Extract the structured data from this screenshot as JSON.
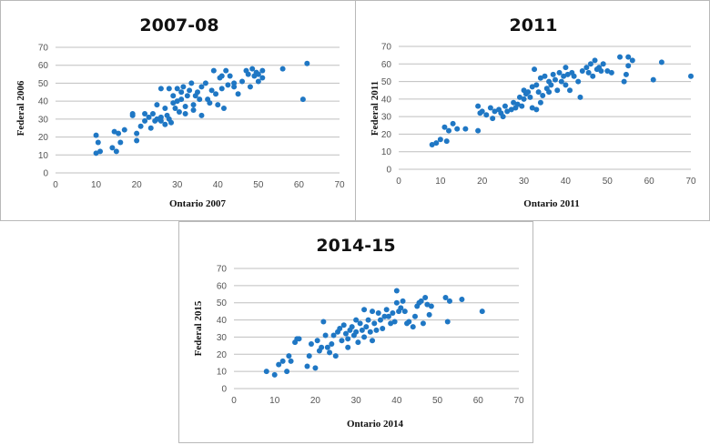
{
  "chart_data": [
    {
      "type": "scatter",
      "title": "2007-08",
      "xlabel": "Ontario 2007",
      "ylabel": "Federal 2006",
      "xlim": [
        0,
        70
      ],
      "ylim": [
        0,
        70
      ],
      "xticks": [
        0,
        10,
        20,
        30,
        40,
        50,
        60,
        70
      ],
      "yticks": [
        0,
        10,
        20,
        30,
        40,
        50,
        60,
        70
      ],
      "grid": "horizontal",
      "color": "#1f77c4",
      "points": [
        [
          10,
          11
        ],
        [
          10,
          21
        ],
        [
          10.5,
          17
        ],
        [
          11,
          12
        ],
        [
          14,
          14
        ],
        [
          14.5,
          23
        ],
        [
          15,
          12
        ],
        [
          15.5,
          22
        ],
        [
          16,
          17
        ],
        [
          17,
          24
        ],
        [
          19,
          33
        ],
        [
          19,
          32
        ],
        [
          20,
          18
        ],
        [
          20,
          22
        ],
        [
          21,
          26
        ],
        [
          22,
          29
        ],
        [
          22,
          33
        ],
        [
          23,
          31
        ],
        [
          23.5,
          25
        ],
        [
          24,
          33
        ],
        [
          24.5,
          29
        ],
        [
          25,
          38
        ],
        [
          25,
          30
        ],
        [
          26,
          31
        ],
        [
          26,
          29
        ],
        [
          26,
          47
        ],
        [
          27,
          36
        ],
        [
          27,
          27
        ],
        [
          27.5,
          32
        ],
        [
          28,
          30
        ],
        [
          28,
          47
        ],
        [
          28.5,
          28
        ],
        [
          29,
          39
        ],
        [
          29,
          43
        ],
        [
          29.5,
          36
        ],
        [
          30,
          47
        ],
        [
          30,
          40
        ],
        [
          30.5,
          34
        ],
        [
          31,
          45
        ],
        [
          31,
          41
        ],
        [
          31.5,
          48
        ],
        [
          32,
          37
        ],
        [
          32,
          33
        ],
        [
          32.5,
          43
        ],
        [
          33,
          46
        ],
        [
          33.5,
          50
        ],
        [
          34,
          38
        ],
        [
          34,
          35
        ],
        [
          34.5,
          43
        ],
        [
          35,
          45
        ],
        [
          35.5,
          41
        ],
        [
          36,
          48
        ],
        [
          36,
          32
        ],
        [
          37,
          50
        ],
        [
          37.5,
          41
        ],
        [
          38,
          39
        ],
        [
          38.5,
          46
        ],
        [
          39,
          57
        ],
        [
          39.5,
          44
        ],
        [
          40,
          38
        ],
        [
          40.5,
          53
        ],
        [
          41,
          54
        ],
        [
          41,
          47
        ],
        [
          41.5,
          36
        ],
        [
          42,
          57
        ],
        [
          42.5,
          49
        ],
        [
          43,
          54
        ],
        [
          44,
          50
        ],
        [
          44,
          48
        ],
        [
          45,
          44
        ],
        [
          46,
          51
        ],
        [
          47,
          57
        ],
        [
          47.5,
          55
        ],
        [
          48,
          48
        ],
        [
          48.5,
          58
        ],
        [
          49,
          54
        ],
        [
          49.5,
          56
        ],
        [
          50,
          55
        ],
        [
          50,
          51
        ],
        [
          51,
          57
        ],
        [
          51,
          53
        ],
        [
          56,
          58
        ],
        [
          61,
          41
        ],
        [
          62,
          61
        ]
      ]
    },
    {
      "type": "scatter",
      "title": "2011",
      "xlabel": "Ontario 2011",
      "ylabel": "Federal 2011",
      "xlim": [
        0,
        70
      ],
      "ylim": [
        0,
        70
      ],
      "xticks": [
        0,
        10,
        20,
        30,
        40,
        50,
        60,
        70
      ],
      "yticks": [
        0,
        10,
        20,
        30,
        40,
        50,
        60,
        70
      ],
      "grid": "horizontal",
      "color": "#1f77c4",
      "points": [
        [
          8,
          14
        ],
        [
          9,
          15
        ],
        [
          10,
          17
        ],
        [
          11,
          24
        ],
        [
          11.5,
          16
        ],
        [
          12,
          22
        ],
        [
          13,
          26
        ],
        [
          14,
          23
        ],
        [
          16,
          23
        ],
        [
          19,
          22
        ],
        [
          19,
          36
        ],
        [
          19.5,
          32
        ],
        [
          20,
          33
        ],
        [
          21,
          31
        ],
        [
          22,
          35
        ],
        [
          22.5,
          29
        ],
        [
          23,
          33
        ],
        [
          24,
          34
        ],
        [
          24.5,
          32
        ],
        [
          25,
          30
        ],
        [
          25.5,
          36
        ],
        [
          26,
          33
        ],
        [
          27,
          34
        ],
        [
          27.5,
          38
        ],
        [
          28,
          35
        ],
        [
          28.5,
          37
        ],
        [
          29,
          41
        ],
        [
          29.5,
          36
        ],
        [
          30,
          45
        ],
        [
          30,
          40
        ],
        [
          30.5,
          43
        ],
        [
          31,
          44
        ],
        [
          31.5,
          41
        ],
        [
          32,
          47
        ],
        [
          32,
          35
        ],
        [
          32.5,
          57
        ],
        [
          33,
          48
        ],
        [
          33,
          34
        ],
        [
          33.5,
          44
        ],
        [
          34,
          38
        ],
        [
          34,
          52
        ],
        [
          34.5,
          42
        ],
        [
          35,
          53
        ],
        [
          35.5,
          46
        ],
        [
          36,
          50
        ],
        [
          36,
          44
        ],
        [
          36.5,
          48
        ],
        [
          37,
          54
        ],
        [
          37.5,
          51
        ],
        [
          38,
          45
        ],
        [
          38.5,
          55
        ],
        [
          39,
          50
        ],
        [
          39.5,
          53
        ],
        [
          40,
          58
        ],
        [
          40,
          48
        ],
        [
          40.5,
          54
        ],
        [
          41,
          45
        ],
        [
          41.5,
          55
        ],
        [
          42,
          53
        ],
        [
          43,
          50
        ],
        [
          43.5,
          41
        ],
        [
          44,
          56
        ],
        [
          45,
          58
        ],
        [
          45.5,
          55
        ],
        [
          46,
          60
        ],
        [
          46.5,
          53
        ],
        [
          47,
          62
        ],
        [
          47.5,
          57
        ],
        [
          48,
          58
        ],
        [
          48.5,
          56
        ],
        [
          49,
          60
        ],
        [
          50,
          56
        ],
        [
          51,
          55
        ],
        [
          53,
          64
        ],
        [
          54,
          50
        ],
        [
          54.5,
          54
        ],
        [
          55,
          59
        ],
        [
          55,
          64
        ],
        [
          56,
          62
        ],
        [
          61,
          51
        ],
        [
          63,
          61
        ],
        [
          70,
          53
        ]
      ]
    },
    {
      "type": "scatter",
      "title": "2014-15",
      "xlabel": "Ontario 2014",
      "ylabel": "Federal 2015",
      "xlim": [
        0,
        70
      ],
      "ylim": [
        0,
        70
      ],
      "xticks": [
        0,
        10,
        20,
        30,
        40,
        50,
        60,
        70
      ],
      "yticks": [
        0,
        10,
        20,
        30,
        40,
        50,
        60,
        70
      ],
      "grid": "horizontal",
      "color": "#1f77c4",
      "points": [
        [
          8,
          10
        ],
        [
          10,
          8
        ],
        [
          11,
          14
        ],
        [
          12,
          16
        ],
        [
          13,
          10
        ],
        [
          13.5,
          19
        ],
        [
          14,
          16
        ],
        [
          15,
          27
        ],
        [
          15.5,
          29
        ],
        [
          16,
          29
        ],
        [
          18,
          13
        ],
        [
          18.5,
          19
        ],
        [
          19,
          26
        ],
        [
          20,
          12
        ],
        [
          20.5,
          28
        ],
        [
          21,
          22
        ],
        [
          21.5,
          24
        ],
        [
          22,
          39
        ],
        [
          22.5,
          31
        ],
        [
          23,
          24
        ],
        [
          23.5,
          21
        ],
        [
          24,
          26
        ],
        [
          24.5,
          31
        ],
        [
          25,
          19
        ],
        [
          25.5,
          33
        ],
        [
          26,
          35
        ],
        [
          26.5,
          28
        ],
        [
          27,
          37
        ],
        [
          27.5,
          32
        ],
        [
          28,
          29
        ],
        [
          28,
          24
        ],
        [
          28.5,
          34
        ],
        [
          29,
          36
        ],
        [
          29.5,
          31
        ],
        [
          30,
          40
        ],
        [
          30,
          33
        ],
        [
          30.5,
          27
        ],
        [
          31,
          38
        ],
        [
          31.5,
          34
        ],
        [
          32,
          46
        ],
        [
          32,
          30
        ],
        [
          32.5,
          36
        ],
        [
          33,
          40
        ],
        [
          33.5,
          33
        ],
        [
          34,
          45
        ],
        [
          34,
          28
        ],
        [
          34.5,
          38
        ],
        [
          35,
          34
        ],
        [
          35.5,
          44
        ],
        [
          36,
          40
        ],
        [
          36.5,
          35
        ],
        [
          37,
          42
        ],
        [
          37.5,
          46
        ],
        [
          38,
          42
        ],
        [
          38.5,
          38
        ],
        [
          39,
          44
        ],
        [
          39.5,
          39
        ],
        [
          40,
          50
        ],
        [
          40,
          57
        ],
        [
          40.5,
          45
        ],
        [
          41,
          47
        ],
        [
          41.5,
          51
        ],
        [
          42,
          45
        ],
        [
          42.5,
          38
        ],
        [
          43,
          39
        ],
        [
          44,
          36
        ],
        [
          44.5,
          42
        ],
        [
          45,
          48
        ],
        [
          45.5,
          50
        ],
        [
          46,
          51
        ],
        [
          46.5,
          38
        ],
        [
          47,
          53
        ],
        [
          47.5,
          49
        ],
        [
          48,
          43
        ],
        [
          48.5,
          48
        ],
        [
          52,
          53
        ],
        [
          52.5,
          39
        ],
        [
          53,
          51
        ],
        [
          56,
          52
        ],
        [
          61,
          45
        ]
      ]
    }
  ]
}
